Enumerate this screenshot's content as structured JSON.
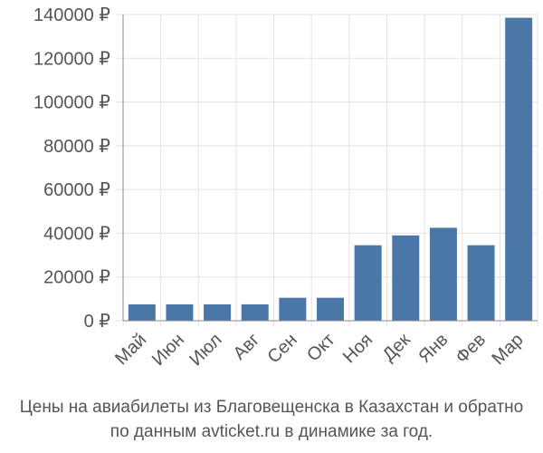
{
  "chart_data": {
    "type": "bar",
    "categories": [
      "Май",
      "Июн",
      "Июл",
      "Авг",
      "Сен",
      "Окт",
      "Ноя",
      "Дек",
      "Янв",
      "Фев",
      "Мар"
    ],
    "values": [
      7500,
      7500,
      7500,
      7500,
      10500,
      10500,
      34500,
      39000,
      42500,
      34500,
      138500
    ],
    "y_ticks": [
      "0 ₽",
      "20000 ₽",
      "40000 ₽",
      "60000 ₽",
      "80000 ₽",
      "100000 ₽",
      "120000 ₽",
      "140000 ₽"
    ],
    "ylim": [
      0,
      140000
    ],
    "grid": true,
    "bar_color": "#4a76a8",
    "grid_color": "#e3e3e3",
    "axis_color": "#888888"
  },
  "caption": {
    "line1": "Цены на авиабилеты из Благовещенска в Казахстан и обратно",
    "line2": "по данным avticket.ru в динамике за год."
  }
}
